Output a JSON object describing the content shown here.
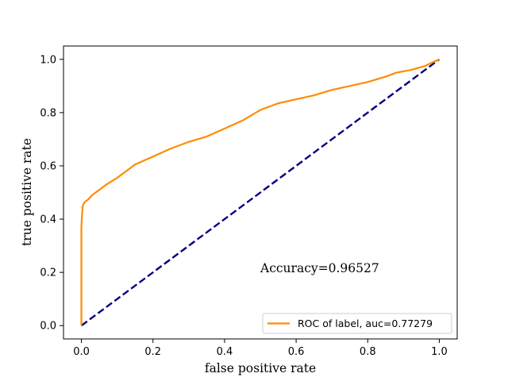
{
  "chart_data": {
    "type": "line",
    "title": "",
    "xlabel": "false positive rate",
    "ylabel": "true positive rate",
    "xlim": [
      -0.05,
      1.05
    ],
    "ylim": [
      -0.05,
      1.05
    ],
    "grid": false,
    "legend_position": "bottom-right",
    "x_ticks": [
      "0.0",
      "0.2",
      "0.4",
      "0.6",
      "0.8",
      "1.0"
    ],
    "y_ticks": [
      "0.0",
      "0.2",
      "0.4",
      "0.6",
      "0.8",
      "1.0"
    ],
    "annotation": {
      "text": "Accuracy=0.96527",
      "x": 0.5,
      "y": 0.2
    },
    "series": [
      {
        "name": "ROC of label, auc=0.77279",
        "color": "#ff8c00",
        "style": "solid",
        "x": [
          0.0,
          0.0,
          0.001,
          0.002,
          0.003,
          0.005,
          0.01,
          0.02,
          0.03,
          0.05,
          0.07,
          0.1,
          0.13,
          0.15,
          0.2,
          0.25,
          0.3,
          0.35,
          0.4,
          0.45,
          0.5,
          0.55,
          0.6,
          0.65,
          0.7,
          0.75,
          0.8,
          0.85,
          0.88,
          0.92,
          0.96,
          0.98,
          1.0
        ],
        "y": [
          0.0,
          0.37,
          0.4,
          0.42,
          0.44,
          0.455,
          0.465,
          0.475,
          0.49,
          0.51,
          0.53,
          0.555,
          0.585,
          0.605,
          0.635,
          0.665,
          0.69,
          0.71,
          0.74,
          0.77,
          0.81,
          0.835,
          0.85,
          0.865,
          0.885,
          0.9,
          0.915,
          0.935,
          0.95,
          0.96,
          0.975,
          0.988,
          1.0
        ]
      },
      {
        "name": "",
        "color": "#000080",
        "style": "dashed",
        "x": [
          0.0,
          1.0
        ],
        "y": [
          0.0,
          1.0
        ]
      }
    ]
  }
}
